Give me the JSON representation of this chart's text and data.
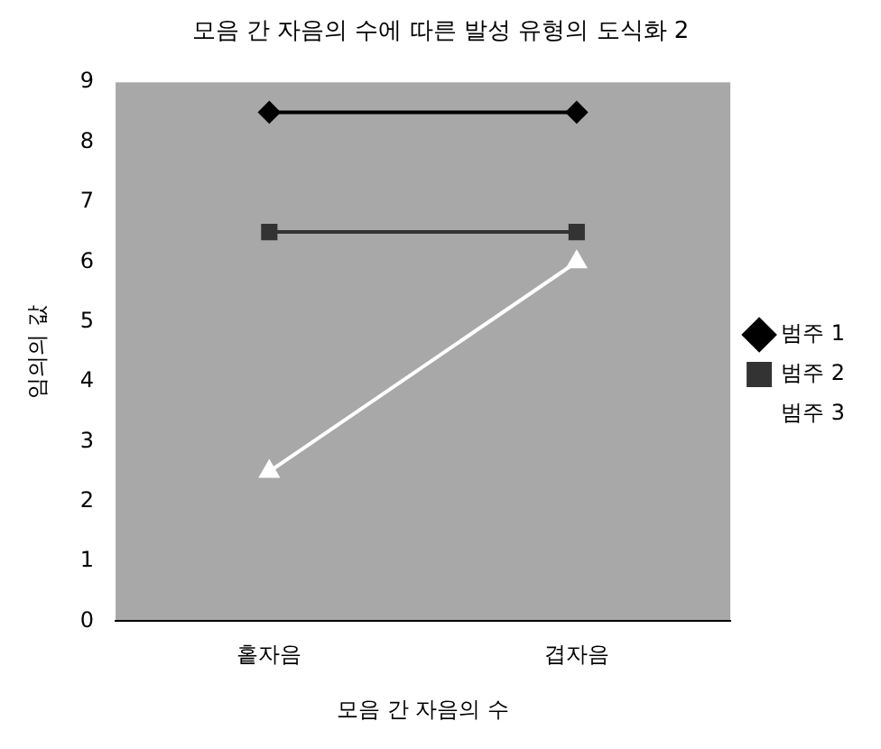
{
  "chart_data": {
    "type": "line",
    "title": "모음 간 자음의 수에 따른 발성 유형의 도식화 2",
    "xlabel": "모음 간 자음의 수",
    "ylabel": "임의의 값",
    "categories": [
      "홑자음",
      "겹자음"
    ],
    "series": [
      {
        "name": "범주 1",
        "color": "#000000",
        "marker": "diamond",
        "values": [
          8.5,
          8.5
        ]
      },
      {
        "name": "범주 2",
        "color": "#333333",
        "marker": "square",
        "values": [
          6.5,
          6.5
        ]
      },
      {
        "name": "범주 3",
        "color": "#ffffff",
        "marker": "triangle",
        "values": [
          2.5,
          6
        ]
      }
    ],
    "ylim": [
      0,
      9
    ],
    "yticks": [
      0,
      1,
      2,
      3,
      4,
      5,
      6,
      7,
      8,
      9
    ],
    "grid": false,
    "legend": "right"
  }
}
